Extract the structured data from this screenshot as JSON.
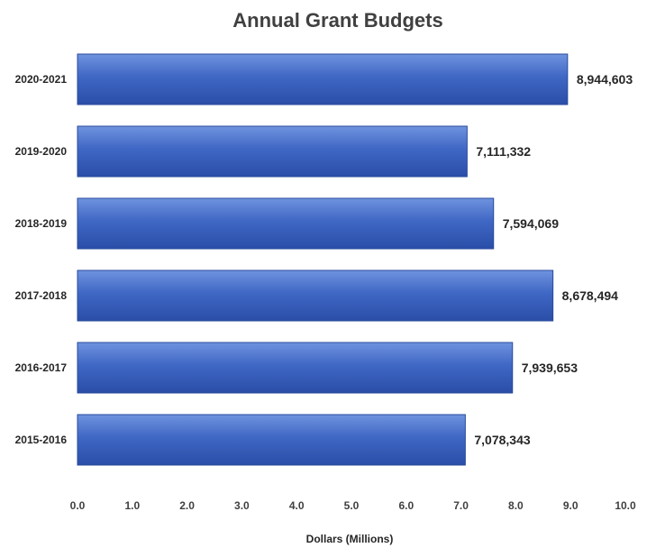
{
  "chart_data": {
    "type": "bar",
    "orientation": "horizontal",
    "title": "Annual Grant Budgets",
    "xlabel": "Dollars (Millions)",
    "ylabel": "",
    "categories": [
      "2015-2016",
      "2016-2017",
      "2017-2018",
      "2018-2019",
      "2019-2020",
      "2020-2021"
    ],
    "values": [
      7078343,
      7939653,
      8678494,
      7594069,
      7111332,
      8944603
    ],
    "value_labels": [
      "7,078,343",
      "7,939,653",
      "8,678,494",
      "7,594,069",
      "7,111,332",
      "8,944,603"
    ],
    "xlim": [
      0,
      10
    ],
    "x_ticks": [
      "0.0",
      "1.0",
      "2.0",
      "3.0",
      "4.0",
      "5.0",
      "6.0",
      "7.0",
      "8.0",
      "9.0",
      "10.0"
    ],
    "grid": false,
    "legend": "none",
    "bar_color": "#3a62c0"
  }
}
